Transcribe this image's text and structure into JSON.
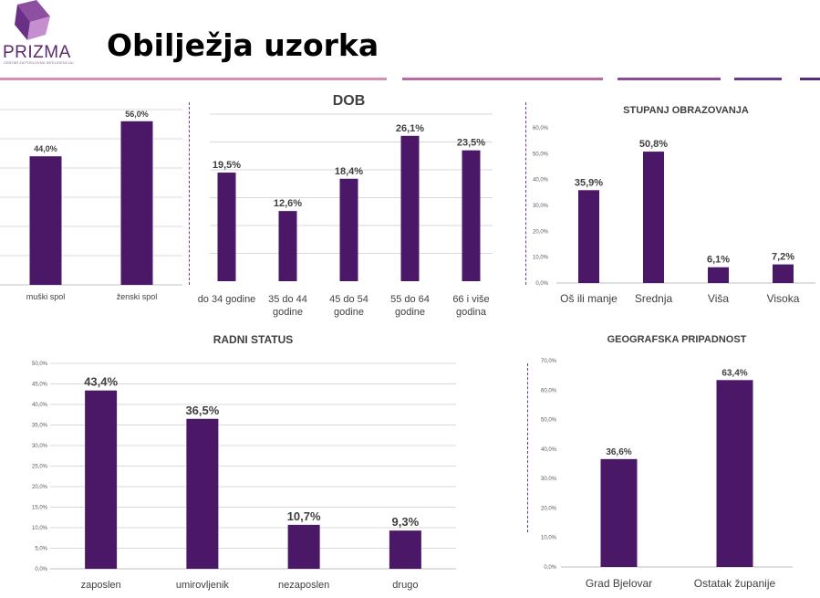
{
  "header": {
    "logo_text": "PRIZMA",
    "logo_subtext": "CENTAR ZA POSLOVNU INTELIGENCIJU",
    "title": "Obilježja uzorka"
  },
  "colors": {
    "bar": "#4b1868",
    "rule_light": "#d98fb3",
    "rule_dark": "#5a2a7e",
    "grid": "#d9d9d9",
    "logo_top": "#8e4fa0",
    "logo_mid": "#c58fcf",
    "logo_side": "#6a2f86"
  },
  "chart_data": [
    {
      "id": "spol",
      "type": "bar",
      "title": "",
      "categories": [
        "muški spol",
        "ženski spol"
      ],
      "values": [
        44.0,
        56.0
      ],
      "labels": [
        "44,0%",
        "56,0%"
      ],
      "ylim": [
        0,
        60
      ],
      "grid": true
    },
    {
      "id": "dob",
      "type": "bar",
      "title": "DOB",
      "categories": [
        [
          "do 34 godine"
        ],
        [
          "35 do 44",
          "godine"
        ],
        [
          "45 do 54",
          "godine"
        ],
        [
          "55 do 64",
          "godine"
        ],
        [
          "66 i više",
          "godina"
        ]
      ],
      "values": [
        19.5,
        12.6,
        18.4,
        26.1,
        23.5
      ],
      "labels": [
        "19,5%",
        "12,6%",
        "18,4%",
        "26,1%",
        "23,5%"
      ],
      "ylim": [
        0,
        30
      ],
      "grid": true
    },
    {
      "id": "obrazovanje",
      "type": "bar",
      "title": "STUPANJ OBRAZOVANJA",
      "categories": [
        "Oš ili manje",
        "Srednja",
        "Viša",
        "Visoka"
      ],
      "values": [
        35.9,
        50.8,
        6.1,
        7.2
      ],
      "labels": [
        "35,9%",
        "50,8%",
        "6,1%",
        "7,2%"
      ],
      "yticks": [
        "0,0%",
        "10,0%",
        "20,0%",
        "30,0%",
        "40,0%",
        "50,0%",
        "60,0%"
      ],
      "ylim": [
        0,
        60
      ],
      "grid": false
    },
    {
      "id": "radni_status",
      "type": "bar",
      "title": "RADNI STATUS",
      "categories": [
        "zaposlen",
        "umirovljenik",
        "nezaposlen",
        "drugo"
      ],
      "values": [
        43.4,
        36.5,
        10.7,
        9.3
      ],
      "labels": [
        "43,4%",
        "36,5%",
        "10,7%",
        "9,3%"
      ],
      "yticks": [
        "0,0%",
        "5,0%",
        "10,0%",
        "15,0%",
        "20,0%",
        "25,0%",
        "30,0%",
        "35,0%",
        "40,0%",
        "45,0%",
        "50,0%"
      ],
      "ylim": [
        0,
        50
      ],
      "grid": true
    },
    {
      "id": "geografija",
      "type": "bar",
      "title": "GEOGRAFSKA PRIPADNOST",
      "categories": [
        "Grad Bjelovar",
        "Ostatak županije"
      ],
      "values": [
        36.6,
        63.4
      ],
      "labels": [
        "36,6%",
        "63,4%"
      ],
      "yticks": [
        "0,0%",
        "10,0%",
        "20,0%",
        "30,0%",
        "40,0%",
        "50,0%",
        "60,0%",
        "70,0%"
      ],
      "ylim": [
        0,
        70
      ],
      "grid": false
    }
  ]
}
